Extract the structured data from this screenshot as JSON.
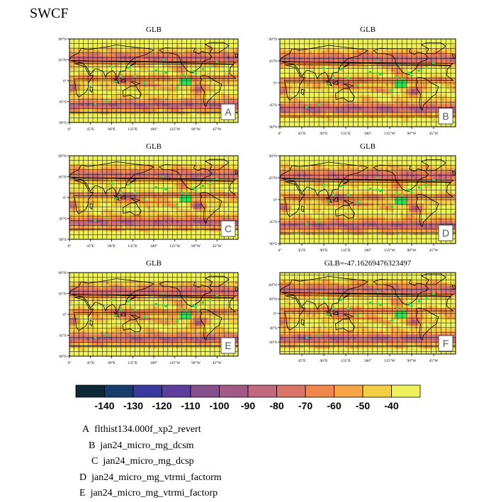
{
  "figure": {
    "title": "SWCF"
  },
  "chart_data": {
    "type": "heatmap",
    "description_kind": "map",
    "colorbar": {
      "colors": [
        "#0c2a36",
        "#173d6a",
        "#3a39a0",
        "#5d3e9e",
        "#86508f",
        "#a05a85",
        "#c2687c",
        "#dd7468",
        "#f2874e",
        "#f6a445",
        "#f3cd42",
        "#eef25a"
      ],
      "labels": [
        "-140",
        "-130",
        "-120",
        "-110",
        "-100",
        "-90",
        "-80",
        "-70",
        "-60",
        "-50",
        "-40"
      ]
    },
    "panels": [
      {
        "letter": "A",
        "title": "GLB",
        "lat_labels": [
          "90°N",
          "45°N",
          "0°",
          "45°S",
          "90°S"
        ],
        "lon_labels": [
          "0°",
          "45°E",
          "90°E",
          "135°E",
          "180°",
          "135°W",
          "90°W",
          "45°W"
        ]
      },
      {
        "letter": "B",
        "title": "GLB",
        "lat_labels": [
          "90°N",
          "45°N",
          "0°",
          "45°S",
          "90°S"
        ],
        "lon_labels": [
          "0°",
          "45°E",
          "90°E",
          "135°E",
          "180°",
          "135°W",
          "90°W",
          "45°W"
        ]
      },
      {
        "letter": "C",
        "title": "GLB",
        "lat_labels": [
          "90°N",
          "45°N",
          "0°",
          "45°S",
          "90°S"
        ],
        "lon_labels": [
          "0°",
          "45°E",
          "90°E",
          "135°E",
          "180°",
          "135°W",
          "90°W",
          "45°W"
        ]
      },
      {
        "letter": "D",
        "title": "GLB",
        "lat_labels": [
          "90°N",
          "45°N",
          "0°",
          "45°S",
          "90°S"
        ],
        "lon_labels": [
          "0°",
          "45°E",
          "90°E",
          "135°E",
          "180°",
          "135°W",
          "90°W",
          "45°W"
        ]
      },
      {
        "letter": "E",
        "title": "GLB",
        "lat_labels": [
          "90°N",
          "45°N",
          "0°",
          "45°S",
          "90°S"
        ],
        "lon_labels": [
          "0°",
          "45°E",
          "90°E",
          "135°E",
          "180°",
          "135°W",
          "90°W",
          "45°W"
        ]
      },
      {
        "letter": "F",
        "title": "GLB=-47.16269476323497",
        "lat_labels": [
          "60°N",
          "30°N",
          "0°",
          "30°S",
          "60°S"
        ],
        "lon_labels": [
          "45°E",
          "90°E",
          "135°E",
          "180°",
          "135°W",
          "90°W",
          "45°W"
        ]
      }
    ]
  },
  "legend": {
    "items": [
      {
        "letter": "A",
        "text": "flthist134.000f_xp2_revert"
      },
      {
        "letter": "B",
        "text": "jan24_micro_mg_dcsm"
      },
      {
        "letter": "C",
        "text": "jan24_micro_mg_dcsp"
      },
      {
        "letter": "D",
        "text": "jan24_micro_mg_vtrmi_factorm"
      },
      {
        "letter": "E",
        "text": "jan24_micro_mg_vtrmi_factorp"
      }
    ]
  }
}
